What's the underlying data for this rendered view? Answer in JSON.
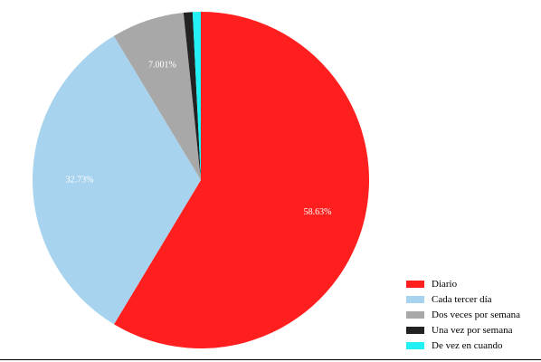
{
  "chart_data": {
    "type": "pie",
    "title": "",
    "series": [
      {
        "name": "Diario",
        "value": 58.63,
        "label": "58.63%",
        "color": "#ff1f1f"
      },
      {
        "name": "Cada tercer día",
        "value": 32.73,
        "label": "32.73%",
        "color": "#a8d3ee"
      },
      {
        "name": "Dos veces por semana",
        "value": 7.001,
        "label": "7.001%",
        "color": "#a8a8a8"
      },
      {
        "name": "Una vez por semana",
        "value": 0.864,
        "label": ".864%",
        "color": "#222222"
      },
      {
        "name": "De vez en cuando",
        "value": 0.7806,
        "label": ".7806%",
        "color": "#22f0f4"
      }
    ],
    "legend_placement": "bottom-right",
    "start_angle": "12 o'clock",
    "direction": "clockwise"
  }
}
